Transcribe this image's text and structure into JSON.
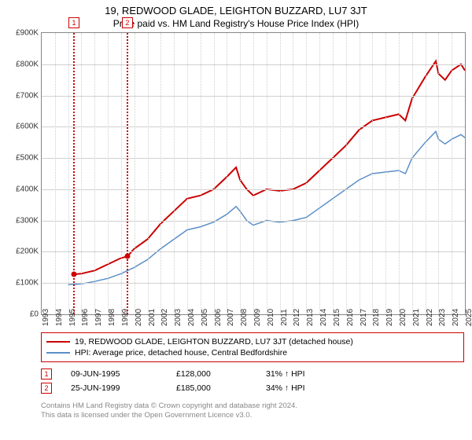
{
  "title": "19, REDWOOD GLADE, LEIGHTON BUZZARD, LU7 3JT",
  "subtitle": "Price paid vs. HM Land Registry's House Price Index (HPI)",
  "chart": {
    "type": "line",
    "background_color": "#ffffff",
    "grid_color": "#d0d0d0",
    "border_color": "#888888",
    "axis_label_fontsize": 10,
    "x_years": [
      1993,
      1994,
      1995,
      1996,
      1997,
      1998,
      1999,
      2000,
      2001,
      2002,
      2003,
      2004,
      2005,
      2006,
      2007,
      2008,
      2009,
      2010,
      2011,
      2012,
      2013,
      2014,
      2015,
      2016,
      2017,
      2018,
      2019,
      2020,
      2021,
      2022,
      2023,
      2024,
      2025
    ],
    "y_ticks": [
      0,
      100000,
      200000,
      300000,
      400000,
      500000,
      600000,
      700000,
      800000,
      900000
    ],
    "y_tick_labels": [
      "£0",
      "£100K",
      "£200K",
      "£300K",
      "£400K",
      "£500K",
      "£600K",
      "£700K",
      "£800K",
      "£900K"
    ],
    "ylim": [
      0,
      900000
    ],
    "xlim": [
      1993,
      2025
    ],
    "series": [
      {
        "label": "19, REDWOOD GLADE, LEIGHTON BUZZARD, LU7 3JT (detached house)",
        "color": "#cc0000",
        "line_width": 2,
        "data": [
          [
            1995.44,
            128000
          ],
          [
            1996,
            130000
          ],
          [
            1997,
            140000
          ],
          [
            1998,
            160000
          ],
          [
            1999,
            180000
          ],
          [
            1999.48,
            185000
          ],
          [
            2000,
            210000
          ],
          [
            2001,
            240000
          ],
          [
            2002,
            290000
          ],
          [
            2003,
            330000
          ],
          [
            2004,
            370000
          ],
          [
            2005,
            380000
          ],
          [
            2006,
            400000
          ],
          [
            2007,
            440000
          ],
          [
            2007.7,
            470000
          ],
          [
            2008,
            430000
          ],
          [
            2008.5,
            400000
          ],
          [
            2009,
            380000
          ],
          [
            2010,
            400000
          ],
          [
            2011,
            395000
          ],
          [
            2012,
            400000
          ],
          [
            2013,
            420000
          ],
          [
            2014,
            460000
          ],
          [
            2015,
            500000
          ],
          [
            2016,
            540000
          ],
          [
            2017,
            590000
          ],
          [
            2018,
            620000
          ],
          [
            2019,
            630000
          ],
          [
            2020,
            640000
          ],
          [
            2020.5,
            620000
          ],
          [
            2021,
            690000
          ],
          [
            2022,
            760000
          ],
          [
            2022.8,
            810000
          ],
          [
            2023,
            770000
          ],
          [
            2023.5,
            750000
          ],
          [
            2024,
            780000
          ],
          [
            2024.7,
            800000
          ],
          [
            2025,
            780000
          ]
        ]
      },
      {
        "label": "HPI: Average price, detached house, Central Bedfordshire",
        "color": "#5b8fc7",
        "line_width": 1.5,
        "data": [
          [
            1995,
            95000
          ],
          [
            1996,
            97000
          ],
          [
            1997,
            105000
          ],
          [
            1998,
            115000
          ],
          [
            1999,
            130000
          ],
          [
            2000,
            150000
          ],
          [
            2001,
            175000
          ],
          [
            2002,
            210000
          ],
          [
            2003,
            240000
          ],
          [
            2004,
            270000
          ],
          [
            2005,
            280000
          ],
          [
            2006,
            295000
          ],
          [
            2007,
            320000
          ],
          [
            2007.7,
            345000
          ],
          [
            2008,
            330000
          ],
          [
            2008.5,
            300000
          ],
          [
            2009,
            285000
          ],
          [
            2010,
            300000
          ],
          [
            2011,
            295000
          ],
          [
            2012,
            300000
          ],
          [
            2013,
            310000
          ],
          [
            2014,
            340000
          ],
          [
            2015,
            370000
          ],
          [
            2016,
            400000
          ],
          [
            2017,
            430000
          ],
          [
            2018,
            450000
          ],
          [
            2019,
            455000
          ],
          [
            2020,
            460000
          ],
          [
            2020.5,
            450000
          ],
          [
            2021,
            500000
          ],
          [
            2022,
            550000
          ],
          [
            2022.8,
            585000
          ],
          [
            2023,
            560000
          ],
          [
            2023.5,
            545000
          ],
          [
            2024,
            560000
          ],
          [
            2024.7,
            575000
          ],
          [
            2025,
            565000
          ]
        ]
      }
    ],
    "markers": [
      {
        "n": "1",
        "year": 1995.44,
        "price": 128000,
        "color": "#cc0000"
      },
      {
        "n": "2",
        "year": 1999.48,
        "price": 185000,
        "color": "#cc0000"
      }
    ]
  },
  "legend": {
    "border_color": "#cc0000",
    "items": [
      {
        "color": "#cc0000",
        "label": "19, REDWOOD GLADE, LEIGHTON BUZZARD, LU7 3JT (detached house)"
      },
      {
        "color": "#5b8fc7",
        "label": "HPI: Average price, detached house, Central Bedfordshire"
      }
    ]
  },
  "sales": [
    {
      "n": "1",
      "color": "#cc0000",
      "date": "09-JUN-1995",
      "price": "£128,000",
      "delta": "31% ↑ HPI"
    },
    {
      "n": "2",
      "color": "#cc0000",
      "date": "25-JUN-1999",
      "price": "£185,000",
      "delta": "34% ↑ HPI"
    }
  ],
  "footnote_l1": "Contains HM Land Registry data © Crown copyright and database right 2024.",
  "footnote_l2": "This data is licensed under the Open Government Licence v3.0."
}
